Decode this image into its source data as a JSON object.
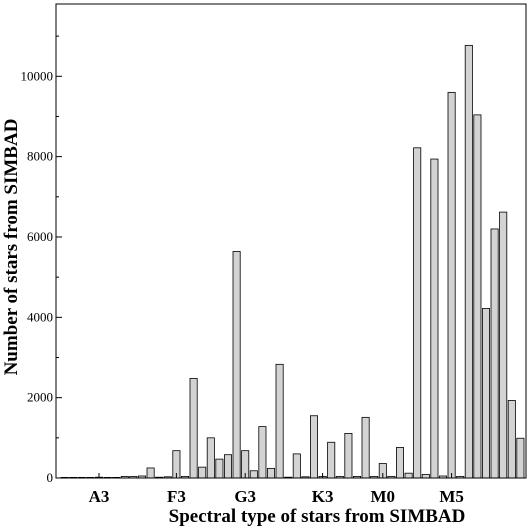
{
  "chart_data": {
    "type": "bar",
    "xlabel": "Spectral type of stars from SIMBAD",
    "ylabel": "Number of stars from SIMBAD",
    "ylim": [
      0,
      11800
    ],
    "y_ticks": [
      0,
      2000,
      4000,
      6000,
      8000,
      10000
    ],
    "y_tick_labels": [
      "0",
      "2000",
      "4000",
      "6000",
      "8000",
      "10000"
    ],
    "x_tick_labels": [
      "A3",
      "F3",
      "G3",
      "K3",
      "M0",
      "M5"
    ],
    "x_tick_positions": [
      4,
      13,
      21,
      30,
      37,
      45
    ],
    "values": [
      15,
      15,
      15,
      15,
      20,
      15,
      15,
      40,
      40,
      50,
      250,
      20,
      30,
      680,
      40,
      2480,
      270,
      1000,
      470,
      580,
      5640,
      680,
      180,
      1280,
      240,
      2830,
      20,
      600,
      30,
      1550,
      40,
      890,
      40,
      1110,
      40,
      1510,
      40,
      360,
      40,
      760,
      120,
      8220,
      90,
      7940,
      50,
      9600,
      40,
      10770,
      9040,
      4220,
      6200,
      6620,
      1930,
      990
    ],
    "bar_color": "#d3d3d3",
    "grid": false
  }
}
